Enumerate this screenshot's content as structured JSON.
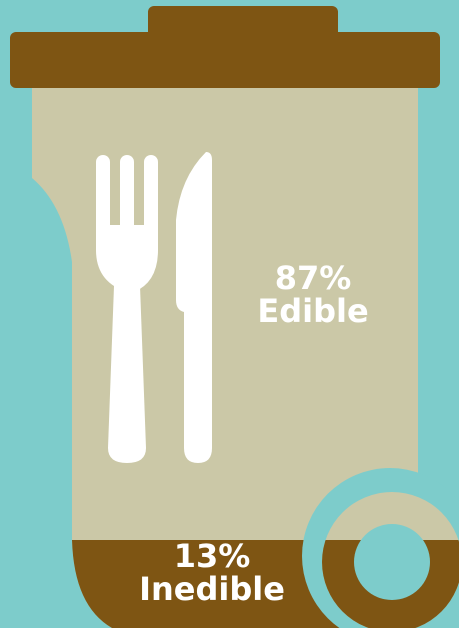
{
  "colors": {
    "background": "#7dcccb",
    "bin_body": "#cbc8a7",
    "lid": "#7e5513",
    "inedible_fill": "#7e5513",
    "utensils": "#ffffff",
    "text": "#ffffff"
  },
  "icons": [
    "fork-icon",
    "knife-icon",
    "wheel-icon"
  ],
  "edible": {
    "percent": "87%",
    "label": "Edible",
    "fraction": 0.87
  },
  "inedible": {
    "percent": "13%",
    "label": "Inedible",
    "fraction": 0.13
  }
}
